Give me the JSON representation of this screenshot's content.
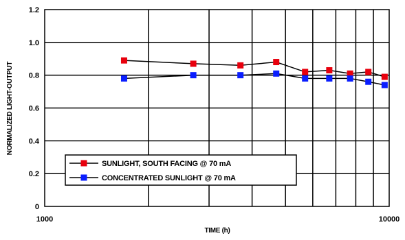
{
  "chart_data": {
    "type": "line",
    "title": "",
    "xlabel": "TIME (h)",
    "ylabel": "NORMALIZED LIGHT-OUTPUT",
    "x_scale": "log",
    "xlim": [
      1000,
      10000
    ],
    "ylim": [
      0,
      1.2
    ],
    "x_ticks": [
      "1000",
      "10000"
    ],
    "y_ticks": [
      "0",
      "0.2",
      "0.4",
      "0.6",
      "0.8",
      "1.0",
      "1.2"
    ],
    "grid": true,
    "legend_position": "bottom-left",
    "series": [
      {
        "name": "SUNLIGHT, SOUTH FACING @ 70 mA",
        "color": "#e8000d",
        "marker": "square",
        "x": [
          1700,
          2700,
          3700,
          4700,
          5700,
          6700,
          7700,
          8700,
          9700
        ],
        "y": [
          0.89,
          0.87,
          0.86,
          0.88,
          0.82,
          0.83,
          0.81,
          0.82,
          0.79
        ]
      },
      {
        "name": "CONCENTRATED SUNLIGHT @ 70 mA",
        "color": "#0a1eff",
        "marker": "square",
        "x": [
          1700,
          2700,
          3700,
          4700,
          5700,
          6700,
          7700,
          8700,
          9700
        ],
        "y": [
          0.78,
          0.8,
          0.8,
          0.81,
          0.78,
          0.78,
          0.78,
          0.76,
          0.74
        ]
      }
    ]
  }
}
